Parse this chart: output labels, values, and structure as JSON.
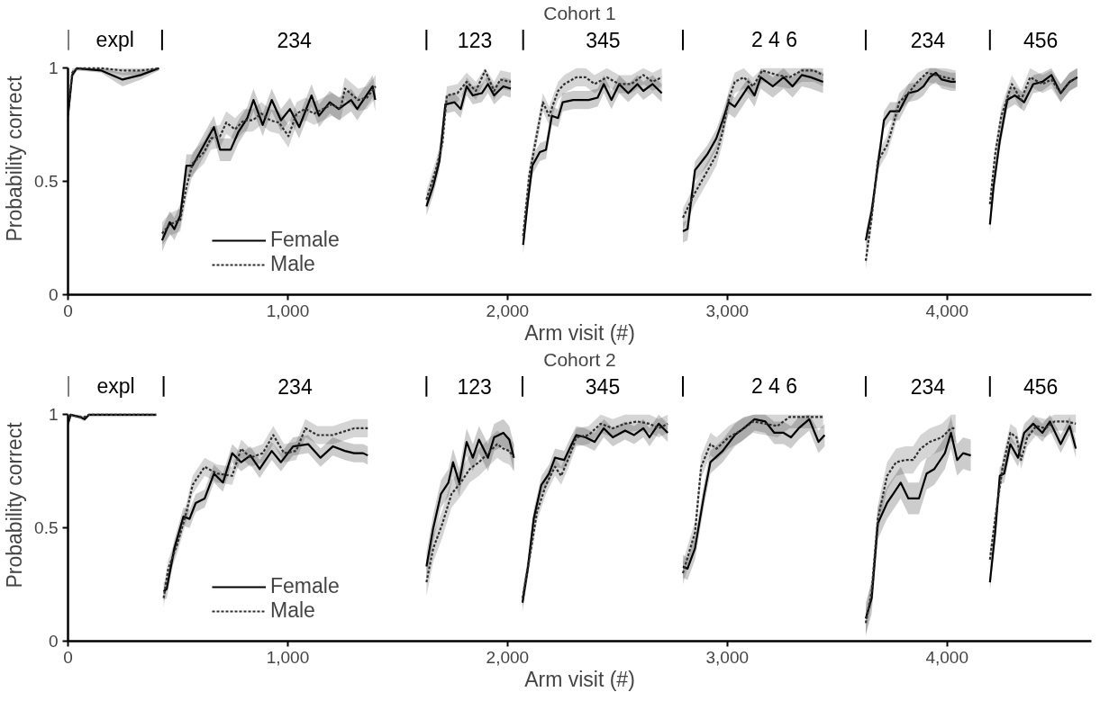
{
  "chart_data": [
    {
      "type": "line",
      "title": "Cohort 1",
      "xlabel": "Arm visit (#)",
      "ylabel": "Probability correct",
      "xlim": [
        0,
        4657
      ],
      "ylim": [
        0,
        1
      ],
      "xticks": [
        {
          "value": 0,
          "label": "0"
        },
        {
          "value": 1000,
          "label": "1,000"
        },
        {
          "value": 2000,
          "label": "2,000"
        },
        {
          "value": 3000,
          "label": "3,000"
        },
        {
          "value": 4000,
          "label": "4,000"
        }
      ],
      "yticks": [
        0,
        0.5,
        1
      ],
      "grid": false,
      "legend": "bottom left",
      "annotations": [
        "expl",
        "234",
        "123",
        "345",
        "2 4 6",
        "234",
        "456"
      ],
      "series": [
        {
          "name": "Female",
          "color": "#000000",
          "line_style": "solid",
          "x": [
            0,
            19,
            40,
            150,
            248,
            331,
            414,
            421,
            428,
            463,
            484,
            511,
            539,
            567,
            595,
            664,
            692,
            740,
            776,
            816,
            844,
            886,
            927,
            969,
            1010,
            1052,
            1108,
            1142,
            1191,
            1232,
            1288,
            1316,
            1386,
            1398,
            1512,
            1631,
            1662,
            1690,
            1717,
            1758,
            1787,
            1814,
            1842,
            1883,
            1911,
            1939,
            1981,
            2015,
            2040,
            2071,
            2092,
            2113,
            2147,
            2175,
            2202,
            2230,
            2251,
            2299,
            2369,
            2410,
            2438,
            2473,
            2508,
            2549,
            2591,
            2618,
            2660,
            2702,
            2750,
            2798,
            2819,
            2853,
            2909,
            2950,
            2979,
            3006,
            3034,
            3096,
            3124,
            3152,
            3207,
            3256,
            3297,
            3339,
            3380,
            3436,
            3530,
            3630,
            3657,
            3685,
            3713,
            3741,
            3782,
            3824,
            3866,
            3893,
            3921,
            3949,
            3976,
            4018,
            4039,
            4115,
            4195,
            4212,
            4240,
            4274,
            4309,
            4351,
            4392,
            4434,
            4475,
            4517,
            4558,
            4593
          ],
          "values": [
            0.79,
            0.97,
            1.0,
            0.99,
            0.95,
            0.97,
            1.0,
            null,
            0.24,
            0.32,
            0.29,
            0.35,
            0.57,
            0.57,
            0.62,
            0.74,
            0.64,
            0.64,
            0.72,
            0.78,
            0.86,
            0.75,
            0.86,
            0.77,
            0.82,
            0.74,
            0.88,
            0.79,
            0.85,
            0.82,
            0.86,
            0.82,
            0.92,
            0.86,
            null,
            0.39,
            0.48,
            0.59,
            0.84,
            0.85,
            0.82,
            0.92,
            0.88,
            0.89,
            0.93,
            0.88,
            0.92,
            0.91,
            null,
            0.22,
            0.41,
            0.57,
            0.63,
            0.64,
            0.79,
            0.78,
            0.85,
            0.86,
            0.86,
            0.87,
            0.93,
            0.86,
            0.93,
            0.89,
            0.93,
            0.9,
            0.93,
            0.89,
            null,
            0.28,
            0.29,
            0.55,
            0.62,
            0.69,
            0.77,
            0.85,
            0.83,
            0.92,
            0.88,
            0.96,
            0.92,
            0.96,
            0.92,
            0.97,
            0.96,
            0.94,
            null,
            0.24,
            0.37,
            0.57,
            0.77,
            0.81,
            0.81,
            0.89,
            0.9,
            0.92,
            0.96,
            0.98,
            0.95,
            0.94,
            0.94,
            null,
            0.31,
            0.48,
            0.68,
            0.86,
            0.88,
            0.85,
            0.93,
            0.94,
            0.97,
            0.89,
            0.94,
            0.96
          ],
          "lower": [
            0.76,
            0.95,
            0.99,
            0.98,
            0.92,
            0.95,
            0.99,
            null,
            0.19,
            0.27,
            0.24,
            0.3,
            0.52,
            0.52,
            0.57,
            0.69,
            0.59,
            0.59,
            0.67,
            0.73,
            0.81,
            0.7,
            0.81,
            0.72,
            0.77,
            0.69,
            0.83,
            0.74,
            0.8,
            0.77,
            0.81,
            0.77,
            0.87,
            0.81,
            null,
            0.35,
            0.44,
            0.55,
            0.8,
            0.81,
            0.78,
            0.88,
            0.84,
            0.85,
            0.89,
            0.84,
            0.88,
            0.87,
            null,
            0.18,
            0.37,
            0.53,
            0.59,
            0.6,
            0.75,
            0.74,
            0.81,
            0.82,
            0.82,
            0.83,
            0.89,
            0.82,
            0.89,
            0.85,
            0.89,
            0.86,
            0.89,
            0.85,
            null,
            0.23,
            0.24,
            0.5,
            0.57,
            0.64,
            0.72,
            0.8,
            0.78,
            0.87,
            0.83,
            0.91,
            0.87,
            0.91,
            0.87,
            0.92,
            0.91,
            0.89,
            null,
            0.2,
            0.33,
            0.53,
            0.73,
            0.77,
            0.77,
            0.85,
            0.86,
            0.88,
            0.92,
            0.94,
            0.91,
            0.9,
            0.9,
            null,
            0.27,
            0.44,
            0.64,
            0.82,
            0.84,
            0.81,
            0.89,
            0.9,
            0.93,
            0.85,
            0.9,
            0.92
          ],
          "upper": [
            0.82,
            0.99,
            1.0,
            1.0,
            0.98,
            0.99,
            1.0,
            null,
            0.29,
            0.37,
            0.34,
            0.4,
            0.62,
            0.62,
            0.67,
            0.79,
            0.69,
            0.69,
            0.77,
            0.83,
            0.91,
            0.8,
            0.91,
            0.82,
            0.87,
            0.79,
            0.93,
            0.84,
            0.9,
            0.87,
            0.91,
            0.87,
            0.97,
            0.91,
            null,
            0.43,
            0.52,
            0.63,
            0.88,
            0.89,
            0.86,
            0.96,
            0.92,
            0.93,
            0.97,
            0.92,
            0.96,
            0.95,
            null,
            0.26,
            0.45,
            0.61,
            0.67,
            0.68,
            0.83,
            0.82,
            0.89,
            0.9,
            0.9,
            0.91,
            0.97,
            0.9,
            0.97,
            0.93,
            0.97,
            0.94,
            0.97,
            0.93,
            null,
            0.32,
            0.33,
            0.59,
            0.66,
            0.73,
            0.81,
            0.89,
            0.87,
            0.96,
            0.92,
            1.0,
            0.96,
            1.0,
            0.96,
            1.0,
            1.0,
            0.98,
            null,
            0.28,
            0.41,
            0.61,
            0.81,
            0.85,
            0.85,
            0.93,
            0.94,
            0.96,
            1.0,
            1.0,
            0.99,
            0.98,
            0.98,
            null,
            0.35,
            0.52,
            0.72,
            0.9,
            0.92,
            0.89,
            0.97,
            0.98,
            1.0,
            0.93,
            0.98,
            1.0
          ]
        },
        {
          "name": "Male",
          "color": "#2e2e2e",
          "line_style": "dashed",
          "x": [
            0,
            19,
            40,
            150,
            248,
            331,
            414,
            421,
            428,
            463,
            511,
            540,
            567,
            620,
            650,
            692,
            720,
            760,
            800,
            840,
            880,
            920,
            960,
            1003,
            1040,
            1080,
            1120,
            1160,
            1200,
            1240,
            1260,
            1320,
            1360,
            1400,
            1512,
            1631,
            1676,
            1704,
            1724,
            1772,
            1814,
            1856,
            1898,
            1939,
            1967,
            2015,
            2040,
            2071,
            2099,
            2134,
            2161,
            2189,
            2230,
            2258,
            2313,
            2355,
            2396,
            2452,
            2508,
            2563,
            2618,
            2660,
            2702,
            2750,
            2798,
            2853,
            2923,
            2951,
            2979,
            3006,
            3034,
            3075,
            3117,
            3159,
            3228,
            3283,
            3339,
            3394,
            3436,
            3530,
            3630,
            3657,
            3685,
            3727,
            3755,
            3782,
            3824,
            3866,
            3908,
            3949,
            3990,
            4039,
            4115,
            4195,
            4219,
            4247,
            4295,
            4337,
            4378,
            4434,
            4475,
            4517,
            4558,
            4593
          ],
          "values": [
            0.8,
            0.98,
            1.0,
            1.0,
            0.99,
            0.99,
            1.0,
            null,
            0.27,
            0.31,
            0.33,
            0.48,
            0.58,
            0.63,
            0.69,
            0.7,
            0.76,
            0.73,
            0.77,
            0.77,
            0.8,
            0.77,
            0.76,
            0.7,
            0.8,
            0.82,
            0.8,
            0.82,
            0.84,
            0.82,
            0.91,
            0.86,
            0.87,
            0.92,
            null,
            0.42,
            0.56,
            0.67,
            0.88,
            0.89,
            0.94,
            0.9,
            0.99,
            0.9,
            0.95,
            0.94,
            null,
            0.26,
            0.53,
            0.71,
            0.85,
            0.79,
            0.9,
            0.93,
            0.96,
            0.96,
            0.93,
            0.96,
            0.93,
            0.93,
            0.97,
            0.94,
            0.96,
            null,
            0.34,
            0.45,
            0.57,
            0.62,
            0.72,
            0.86,
            0.94,
            0.96,
            0.92,
            0.99,
            0.97,
            0.96,
            0.99,
            0.99,
            0.97,
            null,
            0.15,
            0.34,
            0.59,
            0.66,
            0.75,
            0.85,
            0.89,
            0.94,
            0.98,
            0.97,
            0.96,
            0.95,
            null,
            0.4,
            0.62,
            0.79,
            0.93,
            0.86,
            0.96,
            0.93,
            0.95,
            0.89,
            0.94,
            0.96
          ],
          "lower": [
            0.77,
            0.96,
            0.99,
            0.99,
            0.97,
            0.97,
            0.99,
            null,
            0.22,
            0.26,
            0.28,
            0.43,
            0.53,
            0.58,
            0.64,
            0.65,
            0.71,
            0.68,
            0.72,
            0.72,
            0.75,
            0.72,
            0.71,
            0.65,
            0.75,
            0.77,
            0.75,
            0.77,
            0.79,
            0.77,
            0.86,
            0.81,
            0.82,
            0.87,
            null,
            0.38,
            0.52,
            0.63,
            0.84,
            0.85,
            0.9,
            0.86,
            0.95,
            0.86,
            0.91,
            0.9,
            null,
            0.22,
            0.49,
            0.67,
            0.81,
            0.75,
            0.86,
            0.89,
            0.92,
            0.92,
            0.89,
            0.92,
            0.89,
            0.89,
            0.93,
            0.9,
            0.92,
            null,
            0.29,
            0.4,
            0.52,
            0.57,
            0.67,
            0.81,
            0.89,
            0.91,
            0.87,
            0.94,
            0.92,
            0.91,
            0.94,
            0.94,
            0.92,
            null,
            0.11,
            0.3,
            0.55,
            0.62,
            0.71,
            0.81,
            0.85,
            0.9,
            0.94,
            0.93,
            0.92,
            0.91,
            null,
            0.36,
            0.58,
            0.75,
            0.89,
            0.82,
            0.92,
            0.89,
            0.91,
            0.85,
            0.9,
            0.92
          ],
          "upper": [
            0.83,
            1.0,
            1.0,
            1.0,
            1.0,
            1.0,
            1.0,
            null,
            0.32,
            0.36,
            0.38,
            0.53,
            0.63,
            0.68,
            0.74,
            0.75,
            0.81,
            0.78,
            0.82,
            0.82,
            0.85,
            0.82,
            0.81,
            0.75,
            0.85,
            0.87,
            0.85,
            0.87,
            0.89,
            0.87,
            0.96,
            0.91,
            0.92,
            0.97,
            null,
            0.46,
            0.6,
            0.71,
            0.92,
            0.93,
            0.98,
            0.94,
            1.0,
            0.94,
            0.99,
            0.98,
            null,
            0.3,
            0.57,
            0.75,
            0.89,
            0.83,
            0.94,
            0.97,
            1.0,
            1.0,
            0.97,
            1.0,
            0.97,
            0.97,
            1.0,
            0.98,
            1.0,
            null,
            0.38,
            0.49,
            0.61,
            0.66,
            0.76,
            0.9,
            0.98,
            1.0,
            0.96,
            1.0,
            1.0,
            1.0,
            1.0,
            1.0,
            1.0,
            null,
            0.19,
            0.38,
            0.63,
            0.7,
            0.79,
            0.89,
            0.93,
            0.98,
            1.0,
            1.0,
            1.0,
            0.99,
            null,
            0.44,
            0.66,
            0.83,
            0.97,
            0.9,
            1.0,
            0.97,
            0.99,
            0.93,
            0.98,
            1.0
          ]
        }
      ]
    },
    {
      "type": "line",
      "title": "Cohort 2",
      "xlabel": "Arm visit (#)",
      "ylabel": "Probability correct",
      "xlim": [
        0,
        4657
      ],
      "ylim": [
        0,
        1
      ],
      "xticks": [
        {
          "value": 0,
          "label": "0"
        },
        {
          "value": 1000,
          "label": "1,000"
        },
        {
          "value": 2000,
          "label": "2,000"
        },
        {
          "value": 3000,
          "label": "3,000"
        },
        {
          "value": 4000,
          "label": "4,000"
        }
      ],
      "yticks": [
        0,
        0.5,
        1
      ],
      "grid": false,
      "legend": "bottom left",
      "annotations": [
        "expl",
        "234",
        "123",
        "345",
        "2 4 6",
        "234",
        "456"
      ],
      "series": [
        {
          "name": "Female",
          "color": "#000000",
          "line_style": "solid",
          "x": [
            0,
            12,
            54,
            75,
            96,
            401,
            418,
            435,
            449,
            484,
            525,
            553,
            581,
            622,
            664,
            705,
            747,
            788,
            830,
            872,
            927,
            969,
            1024,
            1093,
            1149,
            1205,
            1260,
            1302,
            1343,
            1364,
            1512,
            1631,
            1662,
            1697,
            1731,
            1752,
            1780,
            1814,
            1842,
            1870,
            1911,
            1939,
            1981,
            2008,
            2029,
            2045,
            2068,
            2092,
            2119,
            2154,
            2189,
            2216,
            2258,
            2292,
            2313,
            2355,
            2396,
            2438,
            2479,
            2535,
            2576,
            2618,
            2646,
            2688,
            2729,
            2750,
            2798,
            2819,
            2853,
            2895,
            2923,
            2979,
            3034,
            3075,
            3124,
            3173,
            3214,
            3256,
            3290,
            3325,
            3373,
            3415,
            3443,
            3530,
            3630,
            3657,
            3685,
            3727,
            3755,
            3789,
            3824,
            3872,
            3907,
            3942,
            3990,
            4018,
            4046,
            4073,
            4108,
            4150,
            4195,
            4219,
            4240,
            4260,
            4288,
            4323,
            4351,
            4392,
            4434,
            4468,
            4517,
            4558,
            4586
          ],
          "values": [
            0.96,
            1.0,
            0.99,
            0.98,
            1.0,
            1.0,
            null,
            0.22,
            0.23,
            0.41,
            0.55,
            0.54,
            0.61,
            0.63,
            0.74,
            0.7,
            0.83,
            0.79,
            0.82,
            0.76,
            0.84,
            0.79,
            0.86,
            0.87,
            0.81,
            0.86,
            0.84,
            0.83,
            0.83,
            0.82,
            null,
            0.33,
            0.5,
            0.65,
            0.7,
            0.79,
            0.7,
            0.88,
            0.81,
            0.89,
            0.81,
            0.9,
            0.92,
            0.89,
            0.81,
            null,
            0.17,
            0.32,
            0.54,
            0.69,
            0.74,
            0.81,
            0.8,
            0.87,
            0.91,
            0.9,
            0.88,
            0.94,
            0.9,
            0.93,
            0.91,
            0.94,
            0.9,
            0.96,
            0.92,
            null,
            0.33,
            0.32,
            0.41,
            0.65,
            0.79,
            0.84,
            0.91,
            0.94,
            0.98,
            0.97,
            0.92,
            0.92,
            0.9,
            0.94,
            0.98,
            0.88,
            0.91,
            null,
            0.1,
            0.19,
            0.52,
            0.61,
            0.65,
            0.7,
            0.63,
            0.63,
            0.74,
            0.76,
            0.83,
            0.92,
            0.8,
            0.83,
            0.82,
            null,
            0.26,
            0.48,
            0.73,
            0.74,
            0.87,
            0.81,
            0.92,
            0.96,
            0.92,
            0.97,
            0.87,
            0.95,
            0.85
          ],
          "lower": [
            0.95,
            0.99,
            0.98,
            0.97,
            0.99,
            0.99,
            null,
            0.18,
            0.19,
            0.37,
            0.51,
            0.5,
            0.57,
            0.59,
            0.7,
            0.66,
            0.79,
            0.75,
            0.78,
            0.72,
            0.8,
            0.75,
            0.82,
            0.83,
            0.77,
            0.82,
            0.8,
            0.79,
            0.79,
            0.78,
            null,
            0.27,
            0.44,
            0.59,
            0.64,
            0.73,
            0.64,
            0.82,
            0.75,
            0.83,
            0.75,
            0.84,
            0.86,
            0.83,
            0.75,
            null,
            0.13,
            0.28,
            0.5,
            0.65,
            0.7,
            0.77,
            0.76,
            0.83,
            0.87,
            0.86,
            0.84,
            0.9,
            0.86,
            0.89,
            0.87,
            0.9,
            0.86,
            0.92,
            0.88,
            null,
            0.28,
            0.27,
            0.36,
            0.6,
            0.74,
            0.79,
            0.86,
            0.89,
            0.93,
            0.92,
            0.87,
            0.87,
            0.85,
            0.89,
            0.93,
            0.83,
            0.86,
            null,
            0.03,
            0.12,
            0.45,
            0.54,
            0.58,
            0.63,
            0.56,
            0.56,
            0.67,
            0.69,
            0.76,
            0.85,
            0.73,
            0.76,
            0.75,
            null,
            0.22,
            0.44,
            0.69,
            0.7,
            0.83,
            0.77,
            0.88,
            0.92,
            0.88,
            0.93,
            0.83,
            0.91,
            0.81
          ],
          "upper": [
            0.97,
            1.0,
            1.0,
            0.99,
            1.0,
            1.0,
            null,
            0.26,
            0.27,
            0.45,
            0.59,
            0.58,
            0.65,
            0.67,
            0.78,
            0.74,
            0.87,
            0.83,
            0.86,
            0.8,
            0.88,
            0.83,
            0.9,
            0.91,
            0.85,
            0.9,
            0.88,
            0.87,
            0.87,
            0.86,
            null,
            0.39,
            0.56,
            0.71,
            0.76,
            0.85,
            0.76,
            0.94,
            0.87,
            0.95,
            0.87,
            0.96,
            0.98,
            0.95,
            0.87,
            null,
            0.21,
            0.36,
            0.58,
            0.73,
            0.78,
            0.85,
            0.84,
            0.91,
            0.95,
            0.94,
            0.92,
            0.98,
            0.94,
            0.97,
            0.95,
            0.98,
            0.94,
            1.0,
            0.96,
            null,
            0.38,
            0.37,
            0.46,
            0.7,
            0.84,
            0.89,
            0.96,
            0.99,
            1.0,
            1.0,
            0.97,
            0.97,
            0.95,
            0.99,
            1.0,
            0.93,
            0.96,
            null,
            0.17,
            0.26,
            0.59,
            0.68,
            0.72,
            0.77,
            0.7,
            0.7,
            0.81,
            0.83,
            0.9,
            0.99,
            0.87,
            0.9,
            0.89,
            null,
            0.3,
            0.52,
            0.77,
            0.78,
            0.91,
            0.85,
            0.96,
            1.0,
            0.96,
            1.0,
            0.91,
            0.99,
            0.89
          ]
        },
        {
          "name": "Male",
          "color": "#2e2e2e",
          "line_style": "dashed",
          "x": [
            0,
            12,
            54,
            75,
            96,
            401,
            418,
            435,
            456,
            498,
            539,
            567,
            622,
            678,
            747,
            788,
            830,
            886,
            934,
            983,
            1038,
            1080,
            1135,
            1205,
            1302,
            1364,
            1512,
            1631,
            1662,
            1704,
            1745,
            1787,
            1828,
            1870,
            1911,
            1953,
            1981,
            2008,
            2029,
            2045,
            2068,
            2099,
            2134,
            2175,
            2216,
            2244,
            2279,
            2313,
            2369,
            2424,
            2479,
            2535,
            2591,
            2646,
            2688,
            2729,
            2750,
            2798,
            2853,
            2881,
            2923,
            2951,
            3006,
            3062,
            3117,
            3173,
            3228,
            3283,
            3339,
            3394,
            3436,
            3530,
            3630,
            3657,
            3685,
            3727,
            3768,
            3810,
            3845,
            3879,
            3921,
            3976,
            4018,
            4039,
            4150,
            4195,
            4219,
            4253,
            4288,
            4316,
            4337,
            4365,
            4406,
            4448,
            4489,
            4545,
            4586
          ],
          "values": [
            0.96,
            1.0,
            0.99,
            0.99,
            1.0,
            1.0,
            null,
            0.19,
            0.32,
            0.43,
            0.57,
            0.69,
            0.77,
            0.74,
            0.73,
            0.85,
            0.81,
            0.83,
            0.91,
            0.83,
            0.84,
            0.94,
            0.91,
            0.91,
            0.94,
            0.94,
            null,
            0.26,
            0.41,
            0.52,
            0.65,
            0.7,
            0.76,
            0.79,
            0.83,
            0.87,
            0.85,
            0.84,
            0.81,
            null,
            0.19,
            0.36,
            0.57,
            0.69,
            0.77,
            0.73,
            0.81,
            0.9,
            0.91,
            0.96,
            0.94,
            0.96,
            0.97,
            0.96,
            0.94,
            0.96,
            null,
            0.3,
            0.48,
            0.77,
            0.87,
            0.85,
            0.9,
            0.93,
            0.97,
            0.96,
            0.95,
            0.99,
            0.99,
            0.99,
            0.99,
            null,
            0.08,
            0.22,
            0.54,
            0.73,
            0.79,
            0.8,
            0.8,
            0.85,
            0.88,
            0.9,
            0.94,
            0.94,
            null,
            0.36,
            0.54,
            0.77,
            0.92,
            0.9,
            0.8,
            0.9,
            0.95,
            0.94,
            0.97,
            0.97,
            0.96
          ],
          "lower": [
            null,
            null,
            null,
            null,
            null,
            null,
            null,
            0.15,
            0.28,
            0.39,
            0.53,
            0.65,
            0.73,
            0.7,
            0.69,
            0.81,
            0.77,
            0.79,
            0.87,
            0.79,
            0.8,
            0.9,
            0.87,
            0.87,
            0.9,
            0.9,
            null,
            0.2,
            0.35,
            0.46,
            0.59,
            0.64,
            0.7,
            0.73,
            0.77,
            0.81,
            0.79,
            0.78,
            0.75,
            null,
            0.15,
            0.32,
            0.53,
            0.65,
            0.73,
            0.69,
            0.77,
            0.86,
            0.87,
            0.92,
            0.9,
            0.92,
            0.93,
            0.92,
            0.9,
            0.92,
            null,
            0.25,
            0.43,
            0.72,
            0.82,
            0.8,
            0.85,
            0.88,
            0.92,
            0.91,
            0.9,
            0.94,
            0.94,
            0.94,
            0.94,
            null,
            0.02,
            0.16,
            0.48,
            0.67,
            0.73,
            0.74,
            0.74,
            0.79,
            0.82,
            0.84,
            0.88,
            0.88,
            null,
            0.32,
            0.5,
            0.73,
            0.88,
            0.86,
            0.76,
            0.86,
            0.91,
            0.9,
            0.93,
            0.93,
            0.92
          ],
          "upper": [
            null,
            null,
            null,
            null,
            null,
            null,
            null,
            0.23,
            0.36,
            0.47,
            0.61,
            0.73,
            0.81,
            0.78,
            0.77,
            0.89,
            0.85,
            0.87,
            0.95,
            0.87,
            0.88,
            0.98,
            0.95,
            0.95,
            0.98,
            0.98,
            null,
            0.32,
            0.47,
            0.58,
            0.71,
            0.76,
            0.82,
            0.85,
            0.89,
            0.93,
            0.91,
            0.9,
            0.87,
            null,
            0.23,
            0.4,
            0.61,
            0.73,
            0.81,
            0.77,
            0.85,
            0.94,
            0.95,
            1.0,
            0.98,
            1.0,
            1.0,
            1.0,
            0.98,
            1.0,
            null,
            0.35,
            0.53,
            0.82,
            0.92,
            0.9,
            0.95,
            0.98,
            1.0,
            1.0,
            1.0,
            1.0,
            1.0,
            1.0,
            1.0,
            null,
            0.14,
            0.28,
            0.6,
            0.79,
            0.85,
            0.86,
            0.86,
            0.91,
            0.94,
            0.96,
            1.0,
            1.0,
            null,
            0.4,
            0.58,
            0.81,
            0.96,
            0.94,
            0.84,
            0.94,
            0.99,
            0.98,
            1.0,
            1.0,
            1.0
          ]
        }
      ]
    }
  ]
}
